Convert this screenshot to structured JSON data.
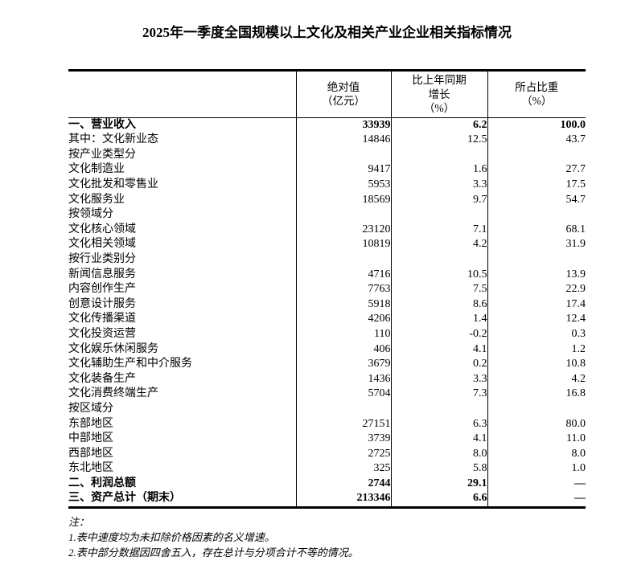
{
  "page": {
    "title": "2025年一季度全国规模以上文化及相关产业企业相关指标情况"
  },
  "table": {
    "columns": [
      {
        "label": ""
      },
      {
        "label": "绝对值\n（亿元）"
      },
      {
        "label": "比上年同期\n增长\n（%）"
      },
      {
        "label": "所占比重\n（%）"
      }
    ],
    "rows": [
      {
        "label": "一、营业收入",
        "indent": 0,
        "bold": true,
        "values": [
          "33939",
          "6.2",
          "100.0"
        ]
      },
      {
        "label": "其中：文化新业态",
        "indent": 2,
        "bold": false,
        "values": [
          "14846",
          "12.5",
          "43.7"
        ]
      },
      {
        "label": "按产业类型分",
        "indent": 0,
        "bold": false,
        "values": [
          "",
          "",
          ""
        ]
      },
      {
        "label": "文化制造业",
        "indent": 1,
        "bold": false,
        "values": [
          "9417",
          "1.6",
          "27.7"
        ]
      },
      {
        "label": "文化批发和零售业",
        "indent": 1,
        "bold": false,
        "values": [
          "5953",
          "3.3",
          "17.5"
        ]
      },
      {
        "label": "文化服务业",
        "indent": 1,
        "bold": false,
        "values": [
          "18569",
          "9.7",
          "54.7"
        ]
      },
      {
        "label": "按领域分",
        "indent": 0,
        "bold": false,
        "values": [
          "",
          "",
          ""
        ]
      },
      {
        "label": "文化核心领域",
        "indent": 1,
        "bold": false,
        "values": [
          "23120",
          "7.1",
          "68.1"
        ]
      },
      {
        "label": "文化相关领域",
        "indent": 1,
        "bold": false,
        "values": [
          "10819",
          "4.2",
          "31.9"
        ]
      },
      {
        "label": "按行业类别分",
        "indent": 0,
        "bold": false,
        "values": [
          "",
          "",
          ""
        ]
      },
      {
        "label": "新闻信息服务",
        "indent": 1,
        "bold": false,
        "values": [
          "4716",
          "10.5",
          "13.9"
        ]
      },
      {
        "label": "内容创作生产",
        "indent": 1,
        "bold": false,
        "values": [
          "7763",
          "7.5",
          "22.9"
        ]
      },
      {
        "label": "创意设计服务",
        "indent": 1,
        "bold": false,
        "values": [
          "5918",
          "8.6",
          "17.4"
        ]
      },
      {
        "label": "文化传播渠道",
        "indent": 1,
        "bold": false,
        "values": [
          "4206",
          "1.4",
          "12.4"
        ]
      },
      {
        "label": "文化投资运营",
        "indent": 1,
        "bold": false,
        "values": [
          "110",
          "-0.2",
          "0.3"
        ]
      },
      {
        "label": "文化娱乐休闲服务",
        "indent": 1,
        "bold": false,
        "values": [
          "406",
          "4.1",
          "1.2"
        ]
      },
      {
        "label": "文化辅助生产和中介服务",
        "indent": 1,
        "bold": false,
        "values": [
          "3679",
          "0.2",
          "10.8"
        ]
      },
      {
        "label": "文化装备生产",
        "indent": 1,
        "bold": false,
        "values": [
          "1436",
          "3.3",
          "4.2"
        ]
      },
      {
        "label": "文化消费终端生产",
        "indent": 1,
        "bold": false,
        "values": [
          "5704",
          "7.3",
          "16.8"
        ]
      },
      {
        "label": "按区域分",
        "indent": 0,
        "bold": false,
        "values": [
          "",
          "",
          ""
        ]
      },
      {
        "label": "东部地区",
        "indent": 1,
        "bold": false,
        "values": [
          "27151",
          "6.3",
          "80.0"
        ]
      },
      {
        "label": "中部地区",
        "indent": 1,
        "bold": false,
        "values": [
          "3739",
          "4.1",
          "11.0"
        ]
      },
      {
        "label": "西部地区",
        "indent": 1,
        "bold": false,
        "values": [
          "2725",
          "8.0",
          "8.0"
        ]
      },
      {
        "label": "东北地区",
        "indent": 1,
        "bold": false,
        "values": [
          "325",
          "5.8",
          "1.0"
        ]
      },
      {
        "label": "二、利润总额",
        "indent": 0,
        "bold": true,
        "values": [
          "2744",
          "29.1",
          "—"
        ]
      },
      {
        "label": "三、资产总计（期末）",
        "indent": 0,
        "bold": true,
        "values": [
          "213346",
          "6.6",
          "—"
        ]
      }
    ]
  },
  "notes": {
    "heading": "注：",
    "items": [
      "1.表中速度均为未扣除价格因素的名义增速。",
      "2.表中部分数据因四舍五入，存在总计与分项合计不等的情况。"
    ]
  }
}
